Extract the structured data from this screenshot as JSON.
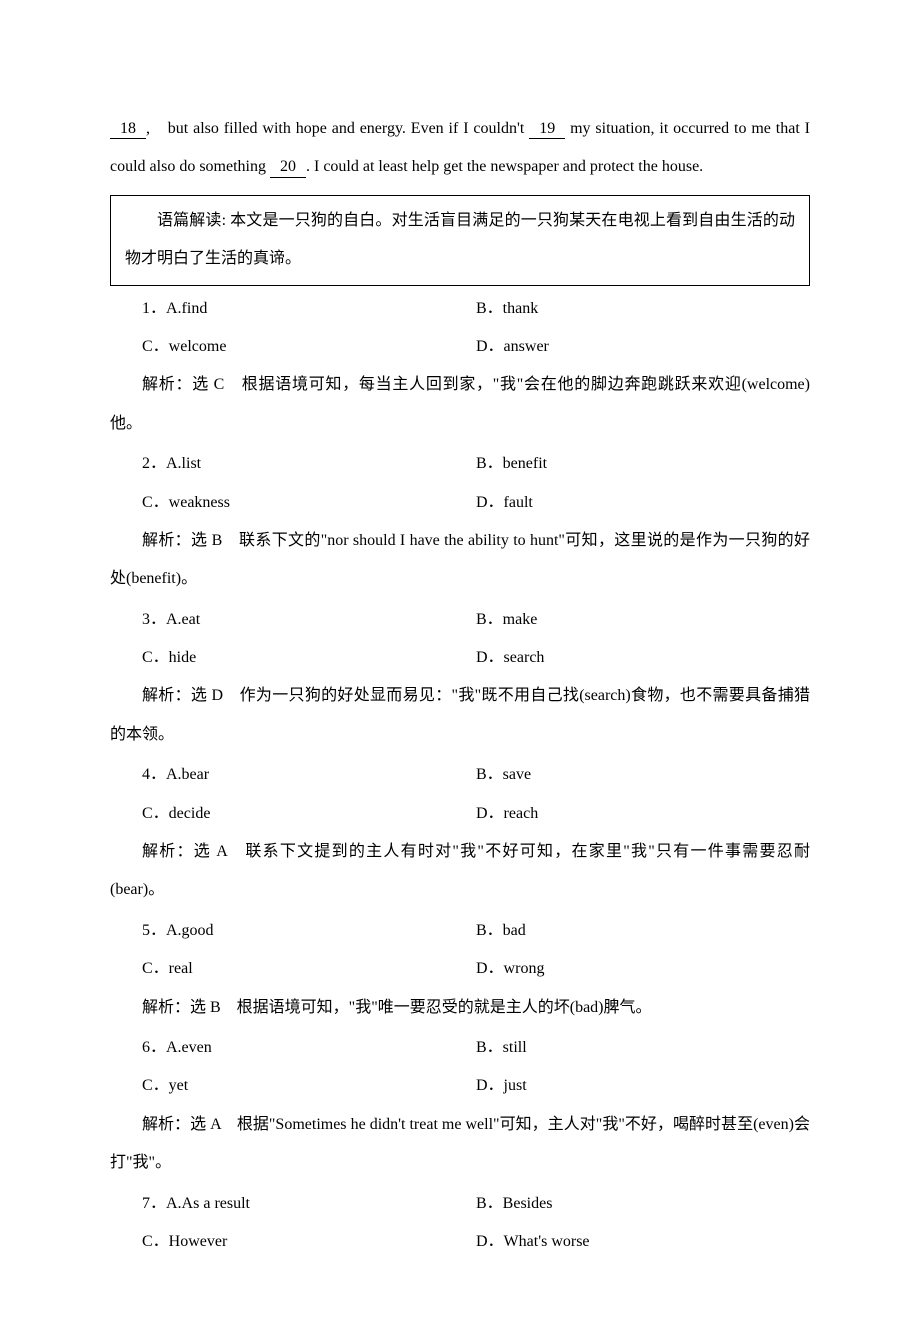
{
  "passage": {
    "seg1": "18",
    "seg2": ",　but also filled with hope and energy. Even if I couldn't ",
    "seg3": "19",
    "seg4": " my situation, it occurred to me that I could also do something ",
    "seg5": "20",
    "seg6": ". I could at least help get the newspaper and protect the house."
  },
  "summary": "语篇解读: 本文是一只狗的自白。对生活盲目满足的一只狗某天在电视上看到自由生活的动物才明白了生活的真谛。",
  "questions": [
    {
      "num": "1",
      "a": "A.find",
      "b": "B．thank",
      "c": "C．welcome",
      "d": "D．answer",
      "ans": "解析：选 C　根据语境可知，每当主人回到家，\"我\"会在他的脚边奔跑跳跃来欢迎(welcome)他。"
    },
    {
      "num": "2",
      "a": "A.list",
      "b": "B．benefit",
      "c": "C．weakness",
      "d": "D．fault",
      "ans": "解析：选 B　联系下文的\"nor should I have the ability to hunt\"可知，这里说的是作为一只狗的好处(benefit)。"
    },
    {
      "num": "3",
      "a": "A.eat",
      "b": "B．make",
      "c": "C．hide",
      "d": "D．search",
      "ans": "解析：选 D　作为一只狗的好处显而易见：\"我\"既不用自己找(search)食物，也不需要具备捕猎的本领。"
    },
    {
      "num": "4",
      "a": "A.bear",
      "b": "B．save",
      "c": "C．decide",
      "d": "D．reach",
      "ans": "解析：选 A　联系下文提到的主人有时对\"我\"不好可知，在家里\"我\"只有一件事需要忍耐(bear)。"
    },
    {
      "num": "5",
      "a": "A.good",
      "b": "B．bad",
      "c": "C．real",
      "d": "D．wrong",
      "ans": "解析：选 B　根据语境可知，\"我\"唯一要忍受的就是主人的坏(bad)脾气。"
    },
    {
      "num": "6",
      "a": "A.even",
      "b": "B．still",
      "c": "C．yet",
      "d": "D．just",
      "ans": "解析：选 A　根据\"Sometimes he didn't treat me well\"可知，主人对\"我\"不好，喝醉时甚至(even)会打\"我\"。"
    },
    {
      "num": "7",
      "a": "A.As a result",
      "b": "B．Besides",
      "c": "C．However",
      "d": "D．What's worse",
      "ans": ""
    }
  ]
}
